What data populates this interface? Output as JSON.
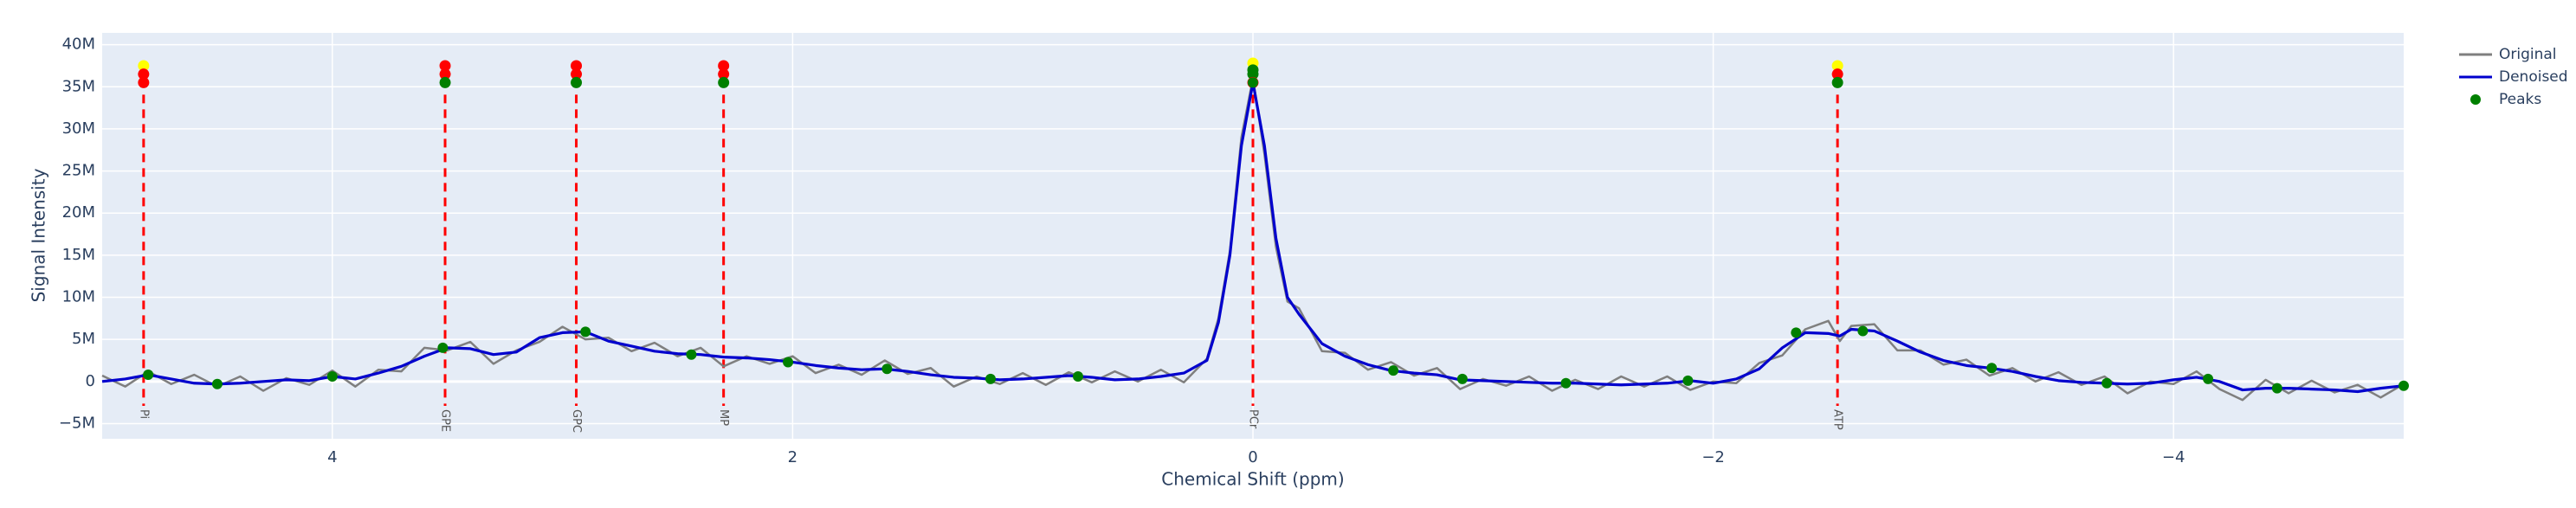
{
  "chart_data": {
    "type": "line",
    "x_label": "Chemical Shift (ppm)",
    "y_label": "Signal Intensity",
    "xlim": [
      5,
      -5
    ],
    "ylim": [
      -6800000.0,
      41400000.0
    ],
    "xticks": [
      4,
      2,
      0,
      {
        "value": -2,
        "label": "−2"
      },
      {
        "value": -4,
        "label": "−4"
      }
    ],
    "yticks": [
      {
        "value": -5000000.0,
        "label": "−5M"
      },
      0,
      {
        "value": 5000000.0,
        "label": "5M"
      },
      {
        "value": 10000000.0,
        "label": "10M"
      },
      {
        "value": 15000000.0,
        "label": "15M"
      },
      {
        "value": 20000000.0,
        "label": "20M"
      },
      {
        "value": 25000000.0,
        "label": "25M"
      },
      {
        "value": 30000000.0,
        "label": "30M"
      },
      {
        "value": 35000000.0,
        "label": "35M"
      },
      {
        "value": 40000000.0,
        "label": "40M"
      }
    ],
    "grid": true,
    "background": "#e5ecf6",
    "legend_position": "outside-top-right",
    "x": [
      5.0,
      4.9,
      4.8,
      4.7,
      4.6,
      4.5,
      4.4,
      4.3,
      4.2,
      4.1,
      4.0,
      3.9,
      3.8,
      3.7,
      3.6,
      3.5,
      3.4,
      3.3,
      3.2,
      3.1,
      3.0,
      2.9,
      2.8,
      2.7,
      2.6,
      2.5,
      2.4,
      2.3,
      2.2,
      2.1,
      2.0,
      1.9,
      1.8,
      1.7,
      1.6,
      1.5,
      1.4,
      1.3,
      1.2,
      1.1,
      1.0,
      0.9,
      0.8,
      0.7,
      0.6,
      0.5,
      0.4,
      0.3,
      0.2,
      0.15,
      0.1,
      0.05,
      0,
      -0.05,
      -0.1,
      -0.15,
      -0.2,
      -0.3,
      -0.4,
      -0.5,
      -0.6,
      -0.7,
      -0.8,
      -0.9,
      -1.0,
      -1.1,
      -1.2,
      -1.3,
      -1.4,
      -1.5,
      -1.6,
      -1.7,
      -1.8,
      -1.9,
      -2.0,
      -2.1,
      -2.2,
      -2.3,
      -2.4,
      -2.5,
      -2.55,
      -2.6,
      -2.7,
      -2.8,
      -2.9,
      -3.0,
      -3.1,
      -3.2,
      -3.3,
      -3.4,
      -3.5,
      -3.6,
      -3.7,
      -3.8,
      -3.9,
      -4.0,
      -4.1,
      -4.2,
      -4.3,
      -4.4,
      -4.5,
      -4.6,
      -4.7,
      -4.8,
      -4.9,
      -5.0
    ],
    "series": [
      {
        "name": "Original",
        "color": "#7f7f7f",
        "mode": "lines",
        "values": [
          700000.0,
          -600000.0,
          1200000.0,
          -300000.0,
          800000.0,
          -600000.0,
          600000.0,
          -1100000.0,
          400000.0,
          -400000.0,
          1300000.0,
          -600000.0,
          1400000.0,
          1200000.0,
          4000000.0,
          3700000.0,
          4700000.0,
          2100000.0,
          3700000.0,
          4700000.0,
          6500000.0,
          5000000.0,
          5200000.0,
          3600000.0,
          4600000.0,
          3000000.0,
          4000000.0,
          1800000.0,
          3000000.0,
          2100000.0,
          3000000.0,
          1000000.0,
          2000000.0,
          800000.0,
          2500000.0,
          900000.0,
          1600000.0,
          -600000.0,
          600000.0,
          -300000.0,
          1000000.0,
          -400000.0,
          1100000.0,
          -100000.0,
          1200000.0,
          0,
          1400000.0,
          -100000.0,
          2700000.0,
          7500000.0,
          15500000.0,
          29000000.0,
          36000000.0,
          27000000.0,
          16000000.0,
          9500000.0,
          8700000.0,
          3600000.0,
          3400000.0,
          1400000.0,
          2300000.0,
          700000.0,
          1600000.0,
          -900000.0,
          300000.0,
          -500000.0,
          600000.0,
          -1100000.0,
          200000.0,
          -900000.0,
          600000.0,
          -600000.0,
          600000.0,
          -1000000.0,
          0,
          -200000.0,
          2200000.0,
          3100000.0,
          6200000.0,
          7200000.0,
          4800000.0,
          6600000.0,
          6800000.0,
          3700000.0,
          3700000.0,
          2000000.0,
          2600000.0,
          700000.0,
          1600000.0,
          0,
          1100000.0,
          -400000.0,
          600000.0,
          -1400000.0,
          0,
          -300000.0,
          1200000.0,
          -900000.0,
          -2200000.0,
          200000.0,
          -1400000.0,
          100000.0,
          -1300000.0,
          -400000.0,
          -1900000.0,
          -300000.0
        ]
      },
      {
        "name": "Denoised",
        "color": "#0000cd",
        "mode": "lines",
        "values": [
          0,
          300000.0,
          800000.0,
          300000.0,
          -200000.0,
          -300000.0,
          -200000.0,
          0,
          200000.0,
          100000.0,
          600000.0,
          300000.0,
          1000000.0,
          1800000.0,
          3000000.0,
          4000000.0,
          3900000.0,
          3200000.0,
          3500000.0,
          5200000.0,
          5800000.0,
          5900000.0,
          4800000.0,
          4200000.0,
          3600000.0,
          3300000.0,
          3200000.0,
          2900000.0,
          2800000.0,
          2600000.0,
          2300000.0,
          1900000.0,
          1600000.0,
          1400000.0,
          1500000.0,
          1200000.0,
          800000.0,
          500000.0,
          400000.0,
          200000.0,
          300000.0,
          500000.0,
          700000.0,
          500000.0,
          200000.0,
          300000.0,
          600000.0,
          1000000.0,
          2500000.0,
          7000000.0,
          15000000.0,
          28000000.0,
          35500000.0,
          28000000.0,
          17000000.0,
          10000000.0,
          8000000.0,
          4500000.0,
          3000000.0,
          2000000.0,
          1300000.0,
          1000000.0,
          800000.0,
          200000.0,
          100000.0,
          0,
          -100000.0,
          -200000.0,
          -200000.0,
          -300000.0,
          -400000.0,
          -300000.0,
          -200000.0,
          100000.0,
          -200000.0,
          300000.0,
          1500000.0,
          4000000.0,
          5800000.0,
          5700000.0,
          5400000.0,
          6200000.0,
          6000000.0,
          4800000.0,
          3500000.0,
          2500000.0,
          1900000.0,
          1600000.0,
          1200000.0,
          600000.0,
          100000.0,
          -100000.0,
          -200000.0,
          -300000.0,
          -200000.0,
          200000.0,
          500000.0,
          0,
          -1000000.0,
          -800000.0,
          -800000.0,
          -900000.0,
          -1000000.0,
          -1200000.0,
          -800000.0,
          -500000.0
        ]
      },
      {
        "name": "Peaks",
        "color": "#008000",
        "mode": "markers",
        "x": [
          4.8,
          4.5,
          4.0,
          3.52,
          2.9,
          2.44,
          2.02,
          1.59,
          1.14,
          0.76,
          0,
          -0.61,
          -0.91,
          -1.36,
          -1.89,
          -2.36,
          -2.65,
          -3.21,
          -3.71,
          -4.15,
          -4.45,
          -5.0
        ],
        "values": [
          800000.0,
          -300000.0,
          600000.0,
          4000000.0,
          5900000.0,
          3200000.0,
          2300000.0,
          1500000.0,
          300000.0,
          600000.0,
          35500000.0,
          1300000.0,
          300000.0,
          -200000.0,
          100000.0,
          5800000.0,
          6000000.0,
          1600000.0,
          -200000.0,
          300000.0,
          -800000.0,
          -500000.0
        ]
      }
    ],
    "peak_labels": [
      {
        "x": 4.82,
        "label": "Pi",
        "marker_values": [
          37500000.0,
          36500000.0,
          35500000.0
        ],
        "marker_colors": [
          "#ffff00",
          "#ff0000",
          "#ff0000"
        ]
      },
      {
        "x": 3.51,
        "label": "GPE",
        "marker_values": [
          37500000.0,
          36500000.0,
          35500000.0
        ],
        "marker_colors": [
          "#ff0000",
          "#ff0000",
          "#008000"
        ]
      },
      {
        "x": 2.94,
        "label": "GPC",
        "marker_values": [
          37500000.0,
          36500000.0,
          35500000.0
        ],
        "marker_colors": [
          "#ff0000",
          "#ff0000",
          "#008000"
        ]
      },
      {
        "x": 2.3,
        "label": "MP",
        "marker_values": [
          37500000.0,
          36500000.0,
          35500000.0
        ],
        "marker_colors": [
          "#ff0000",
          "#ff0000",
          "#008000"
        ]
      },
      {
        "x": 0,
        "label": "PCr",
        "marker_values": [
          37800000.0,
          37000000.0,
          36500000.0,
          35500000.0
        ],
        "marker_colors": [
          "#ffff00",
          "#008000",
          "#008000",
          "#ff0000"
        ]
      },
      {
        "x": -2.54,
        "label": "ATP",
        "marker_values": [
          37500000.0,
          36500000.0,
          35500000.0
        ],
        "marker_colors": [
          "#ffff00",
          "#ff0000",
          "#008000"
        ]
      }
    ]
  }
}
